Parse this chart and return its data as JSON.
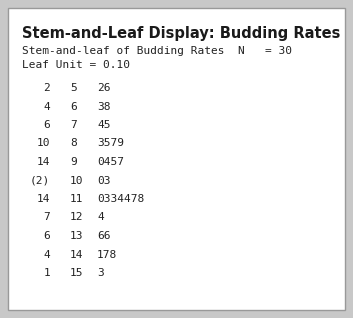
{
  "title": "Stem-and-Leaf Display: Budding Rates",
  "subtitle_line1": "Stem-and-leaf of Budding Rates  N   = 30",
  "subtitle_line2": "Leaf Unit = 0.10",
  "rows": [
    [
      "2",
      "5",
      "26"
    ],
    [
      "4",
      "6",
      "38"
    ],
    [
      "6",
      "7",
      "45"
    ],
    [
      "10",
      "8",
      "3579"
    ],
    [
      "14",
      "9",
      "0457"
    ],
    [
      "(2)",
      "10",
      "03"
    ],
    [
      "14",
      "11",
      "0334478"
    ],
    [
      "7",
      "12",
      "4"
    ],
    [
      "6",
      "13",
      "66"
    ],
    [
      "4",
      "14",
      "178"
    ],
    [
      "1",
      "15",
      "3"
    ]
  ],
  "bg_color": "#ffffff",
  "outer_bg": "#c8c8c8",
  "border_color": "#999999",
  "title_color": "#1a1a1a",
  "text_color": "#222222",
  "title_fontsize": 10.5,
  "subtitle_fontsize": 8.0,
  "data_fontsize": 8.0
}
